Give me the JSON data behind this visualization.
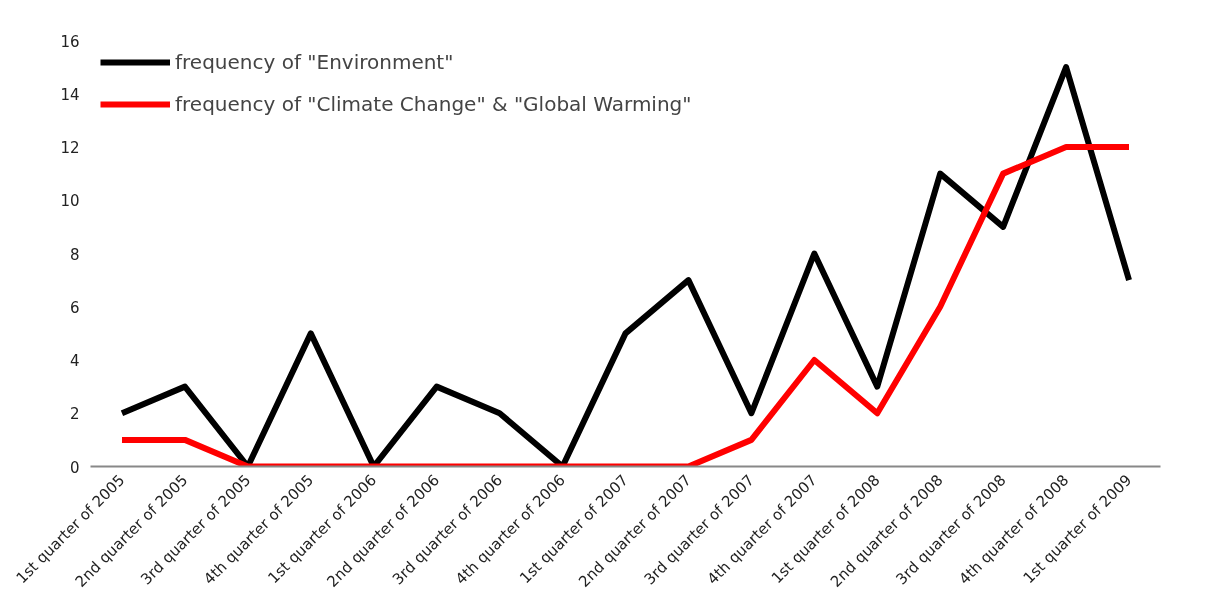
{
  "chart_data": {
    "type": "line",
    "categories": [
      "1st quarter of 2005",
      "2nd quarter of 2005",
      "3rd quarter of 2005",
      "4th quarter of 2005",
      "1st quarter of 2006",
      "2nd quarter of 2006",
      "3rd quarter of 2006",
      "4th quarter of 2006",
      "1st quarter of 2007",
      "2nd quarter of 2007",
      "3rd quarter of 2007",
      "4th quarter of 2007",
      "1st quarter of 2008",
      "2nd quarter of 2008",
      "3rd quarter of 2008",
      "4th quarter of 2008",
      "1st quarter of 2009"
    ],
    "series": [
      {
        "name": "frequency of \"Environment\"",
        "color": "#000000",
        "values": [
          2,
          3,
          0,
          5,
          0,
          3,
          2,
          0,
          5,
          7,
          2,
          8,
          3,
          11,
          9,
          15,
          7
        ]
      },
      {
        "name": "frequency of \"Climate Change\" & \"Global Warming\"",
        "color": "#ff0000",
        "values": [
          1,
          1,
          0,
          0,
          0,
          0,
          0,
          0,
          0,
          0,
          1,
          4,
          2,
          6,
          11,
          12,
          12
        ]
      }
    ],
    "ylim": [
      0,
      16
    ],
    "yticks": [
      0,
      2,
      4,
      6,
      8,
      10,
      12,
      14,
      16
    ],
    "grid": false,
    "legend": "top left",
    "marker": "none",
    "line_style": "solid"
  }
}
